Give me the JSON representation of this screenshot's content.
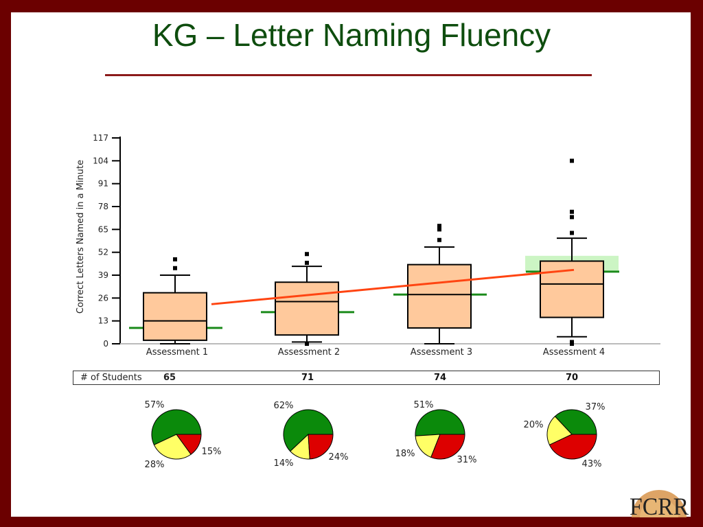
{
  "slide": {
    "title": "KG – Letter Naming Fluency",
    "logo_text": "FCRR",
    "colors": {
      "frame": "#6b0000",
      "title": "#0e4d0e",
      "rule": "#8b1a1a"
    }
  },
  "chart_data": {
    "type": "boxplot",
    "ylabel": "Correct Letters Named in a Minute",
    "ylim": [
      0,
      117
    ],
    "yticks": [
      0,
      13,
      26,
      39,
      52,
      65,
      78,
      91,
      104,
      117
    ],
    "categories": [
      "Assessment 1",
      "Assessment 2",
      "Assessment 3",
      "Assessment 4"
    ],
    "boxes": [
      {
        "min": 0,
        "q1": 2,
        "median": 13,
        "q3": 29,
        "max": 39,
        "outliers": [
          43,
          48
        ],
        "benchmark": 9
      },
      {
        "min": 1,
        "q1": 5,
        "median": 24,
        "q3": 35,
        "max": 44,
        "outliers": [
          0,
          46,
          51
        ],
        "benchmark": 18
      },
      {
        "min": 0,
        "q1": 9,
        "median": 28,
        "q3": 45,
        "max": 55,
        "outliers": [
          59,
          65,
          67
        ],
        "benchmark": 28
      },
      {
        "min": 4,
        "q1": 15,
        "median": 34,
        "q3": 47,
        "max": 60,
        "outliers": [
          0,
          1,
          63,
          72,
          75,
          104
        ],
        "benchmark": 41,
        "benchmark_band": [
          41,
          50
        ]
      }
    ],
    "trend_line": {
      "from": 22.5,
      "to": 42
    },
    "students_label": "# of Students",
    "students": [
      65,
      71,
      74,
      70
    ],
    "pies": [
      {
        "green": 57,
        "yellow": 28,
        "red": 15,
        "labels": [
          "57%",
          "28%",
          "15%"
        ]
      },
      {
        "green": 62,
        "yellow": 14,
        "red": 24,
        "labels": [
          "62%",
          "14%",
          "24%"
        ]
      },
      {
        "green": 51,
        "yellow": 18,
        "red": 31,
        "labels": [
          "51%",
          "18%",
          "31%"
        ]
      },
      {
        "green": 37,
        "yellow": 20,
        "red": 43,
        "labels": [
          "37%",
          "20%",
          "43%"
        ]
      }
    ],
    "colors": {
      "box_fill": "#ffc99c",
      "benchmark": "#1a8a1a",
      "band": "#ccf5c4",
      "trend": "#ff4411",
      "pie_green": "#0b8a0b",
      "pie_yellow": "#ffff66",
      "pie_red": "#dd0000"
    }
  }
}
